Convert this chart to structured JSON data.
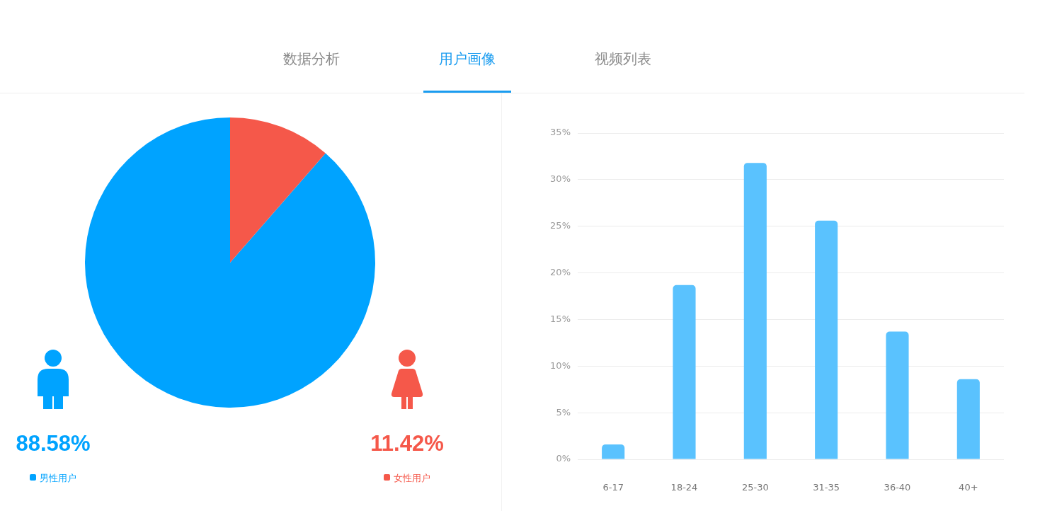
{
  "chart_data": [
    {
      "type": "other",
      "annotations": [
        "数据分析",
        "用户画像",
        "视频列表"
      ]
    },
    {
      "type": "pie",
      "categories": [
        "男性用户",
        "女性用户"
      ],
      "values": [
        88.58,
        11.42
      ],
      "colors": [
        "#00a3ff",
        "#f5584a"
      ],
      "value_labels": [
        "88.58%",
        "11.42%"
      ],
      "legend": "bottom"
    },
    {
      "type": "bar",
      "categories": [
        "6-17",
        "18-24",
        "25-30",
        "31-35",
        "36-40",
        "40+"
      ],
      "values": [
        1.6,
        18.7,
        31.8,
        25.6,
        13.7,
        8.6
      ],
      "color": "#5ac2fe",
      "ylim": [
        0,
        35
      ],
      "yticks": [
        {
          "value": 0,
          "label": "0%"
        },
        {
          "value": 5,
          "label": "5%"
        },
        {
          "value": 10,
          "label": "10%"
        },
        {
          "value": 15,
          "label": "15%"
        },
        {
          "value": 20,
          "label": "20%"
        },
        {
          "value": 25,
          "label": "25%"
        },
        {
          "value": 30,
          "label": "30%"
        },
        {
          "value": 35,
          "label": "35%"
        }
      ],
      "grid": "y"
    }
  ]
}
